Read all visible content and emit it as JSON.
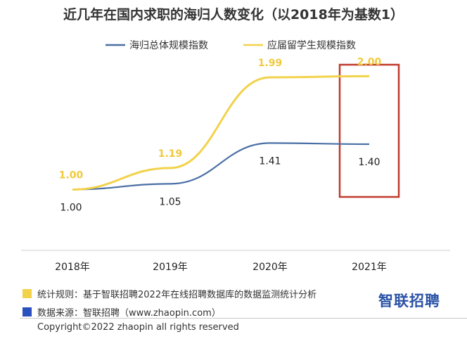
{
  "chart_data": {
    "type": "line",
    "title": "近几年在国内求职的海归人数变化（以2018年为基数1）",
    "categories": [
      "2018年",
      "2019年",
      "2020年",
      "2021年"
    ],
    "series": [
      {
        "name": "海归总体规模指数",
        "color": "#4a6fa5",
        "values": [
          1.0,
          1.05,
          1.41,
          1.4
        ],
        "labels": [
          "1.00",
          "1.05",
          "1.41",
          "1.40"
        ]
      },
      {
        "name": "应届留学生规模指数",
        "color": "#f2d24b",
        "values": [
          1.0,
          1.19,
          1.99,
          2.0
        ],
        "labels": [
          "1.00",
          "1.19",
          "1.99",
          "2.00"
        ]
      }
    ],
    "ylim": [
      0.5,
      2.3
    ],
    "highlight_category": "2021年",
    "highlight_color": "#c0392b",
    "legend_position": "top",
    "grid": false
  },
  "footnotes": [
    {
      "text": "统计规则：基于智联招聘2022年在线招聘数据库的数据监测统计分析",
      "color": "#f2d24b"
    },
    {
      "text": "数据来源：智联招聘（www.zhaopin.com）",
      "color": "#2a4fbf"
    }
  ],
  "brand": "智联招聘",
  "copyright": "Copyright©2022 zhaopin all rights reserved"
}
